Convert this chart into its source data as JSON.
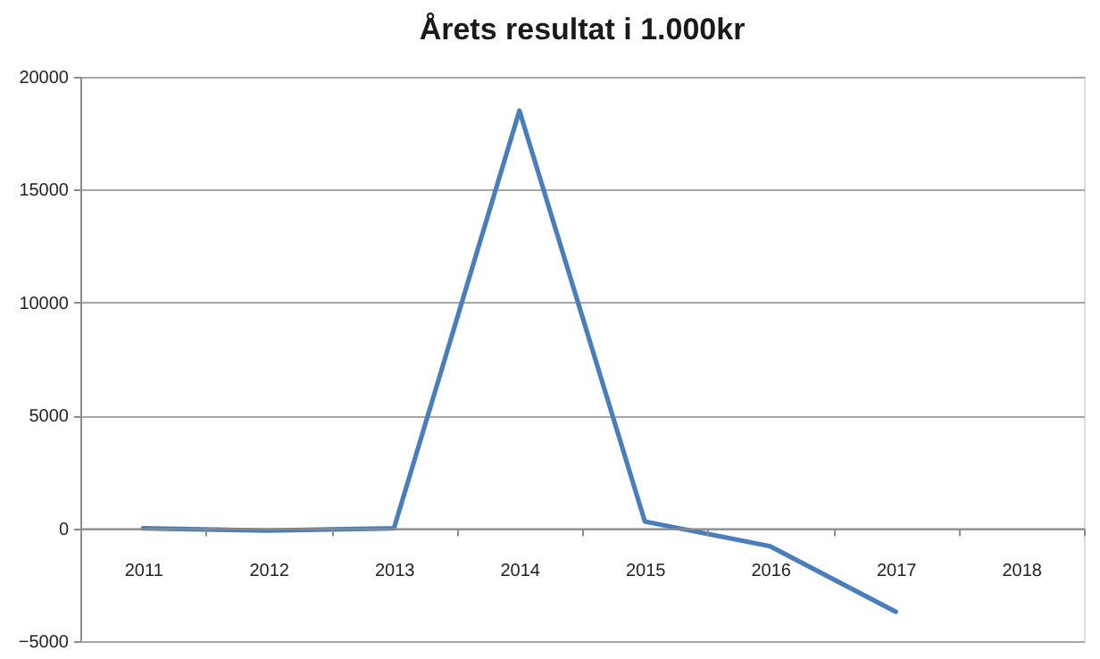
{
  "chart_data": {
    "type": "line",
    "title": "Årets resultat i 1.000kr",
    "categories": [
      "2011",
      "2012",
      "2013",
      "2014",
      "2015",
      "2016",
      "2017",
      "2018"
    ],
    "series": [
      {
        "color": "#4a7ebb",
        "values": [
          0,
          -100,
          0,
          18500,
          300,
          -800,
          -3700,
          null
        ]
      }
    ],
    "ylim": [
      -5000,
      20000
    ],
    "yticks": [
      -5000,
      0,
      5000,
      10000,
      15000,
      20000
    ],
    "grid": "y",
    "legend": false,
    "marker": "none",
    "line_style": "solid"
  }
}
